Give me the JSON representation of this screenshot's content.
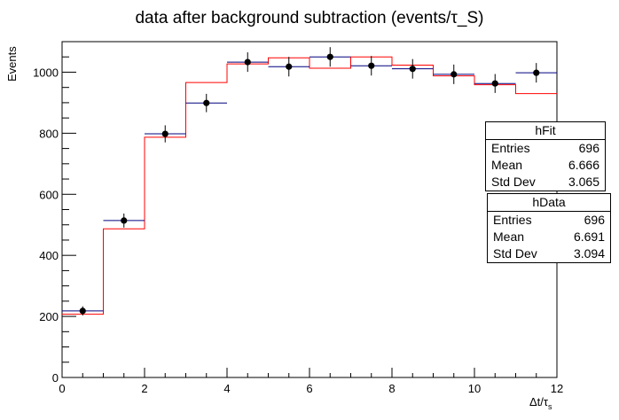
{
  "chart_data": {
    "type": "histogram",
    "title": "data after background subtraction (events/τ_S)",
    "ylabel": "Events",
    "xlabel": "Δt/τ",
    "xlabel_sub": "s",
    "xlim": [
      0,
      12
    ],
    "ylim": [
      0,
      1100
    ],
    "x_ticks": [
      0,
      2,
      4,
      6,
      8,
      10,
      12
    ],
    "y_ticks": [
      0,
      200,
      400,
      600,
      800,
      1000
    ],
    "bin_edges": [
      0,
      1,
      2,
      3,
      4,
      5,
      6,
      7,
      8,
      9,
      10,
      11,
      12
    ],
    "series": [
      {
        "name": "hData",
        "style": "points-with-errors",
        "color": "#000000",
        "bar_color": "#00007f",
        "x": [
          0.5,
          1.5,
          2.5,
          3.5,
          4.5,
          5.5,
          6.5,
          7.5,
          8.5,
          9.5,
          10.5,
          11.5
        ],
        "values": [
          218,
          514,
          798,
          899,
          1033,
          1018,
          1050,
          1021,
          1011,
          993,
          963,
          998
        ],
        "errors": [
          15,
          23,
          28,
          30,
          32,
          32,
          32,
          32,
          32,
          32,
          31,
          32
        ]
      },
      {
        "name": "hFit",
        "style": "step",
        "color": "#ff0000",
        "values": [
          207,
          487,
          787,
          966,
          1027,
          1047,
          1013,
          1050,
          1023,
          988,
          959,
          930
        ]
      }
    ]
  },
  "stats": {
    "fit": {
      "title": "hFit",
      "rows": [
        {
          "label": "Entries",
          "value": "696"
        },
        {
          "label": "Mean",
          "value": "6.666"
        },
        {
          "label": "Std Dev",
          "value": "3.065"
        }
      ]
    },
    "data": {
      "title": "hData",
      "rows": [
        {
          "label": "Entries",
          "value": "696"
        },
        {
          "label": "Mean",
          "value": "6.691"
        },
        {
          "label": "Std Dev",
          "value": "3.094"
        }
      ]
    }
  }
}
